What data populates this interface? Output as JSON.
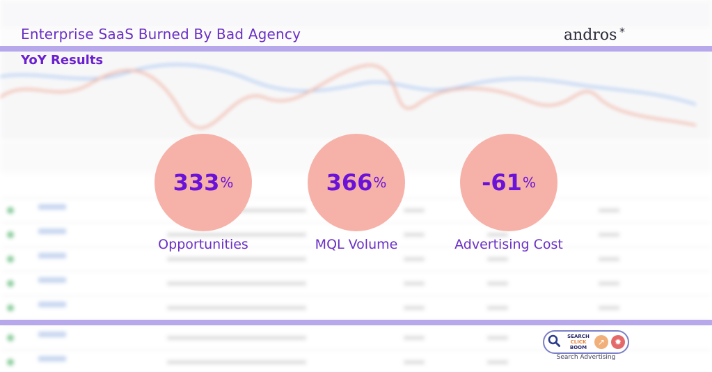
{
  "header": {
    "headline": "Enterprise SaaS Burned By Bad Agency",
    "subhead": "YoY Results",
    "brand": "andros",
    "brand_mark": "*"
  },
  "stats": [
    {
      "value": "333",
      "unit": "%",
      "label": "Opportunities"
    },
    {
      "value": "366",
      "unit": "%",
      "label": "MQL Volume"
    },
    {
      "value": "-61",
      "unit": "%",
      "label": "Advertising Cost"
    }
  ],
  "badge": {
    "line1": "SEARCH",
    "line2": "CLICK",
    "line3": "BOOM",
    "caption": "Search Advertising",
    "icons": [
      "magnifier-icon",
      "arrow-up-right-icon",
      "burst-icon"
    ]
  },
  "colors": {
    "accent_purple": "#6b12d8",
    "band": "#b7a8ec",
    "circle": "#f6b2a8"
  }
}
